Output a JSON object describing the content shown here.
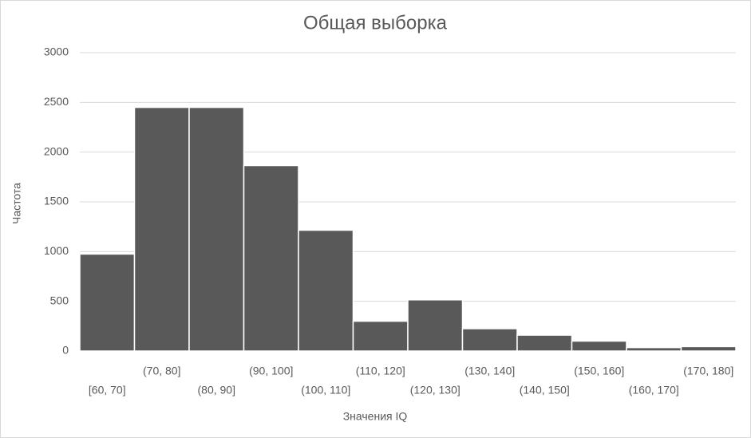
{
  "chart_data": {
    "type": "bar",
    "title": "Общая выборка",
    "x_label": "Значения IQ",
    "y_label": "Частота",
    "categories": [
      "[60, 70]",
      "(70, 80]",
      "(80, 90]",
      "(90, 100]",
      "(100, 110]",
      "(110, 120]",
      "(120, 130]",
      "(130, 140]",
      "(140, 150]",
      "(150, 160]",
      "(160, 170]",
      "(170, 180]"
    ],
    "values": [
      975,
      2450,
      2450,
      1865,
      1215,
      300,
      515,
      225,
      160,
      100,
      35,
      45
    ],
    "color": "#595959",
    "ylim": [
      0,
      3000
    ],
    "yticks": [
      0,
      500,
      1000,
      1500,
      2000,
      2500,
      3000
    ],
    "grid": true
  }
}
